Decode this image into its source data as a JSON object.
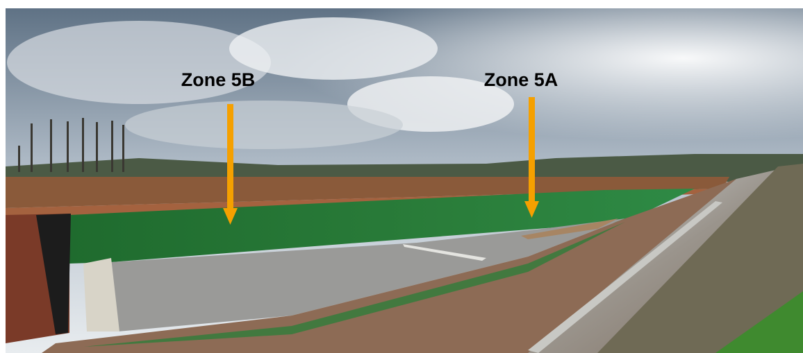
{
  "annotations": [
    {
      "label": "Zone 5B"
    },
    {
      "label": "Zone 5A"
    }
  ]
}
